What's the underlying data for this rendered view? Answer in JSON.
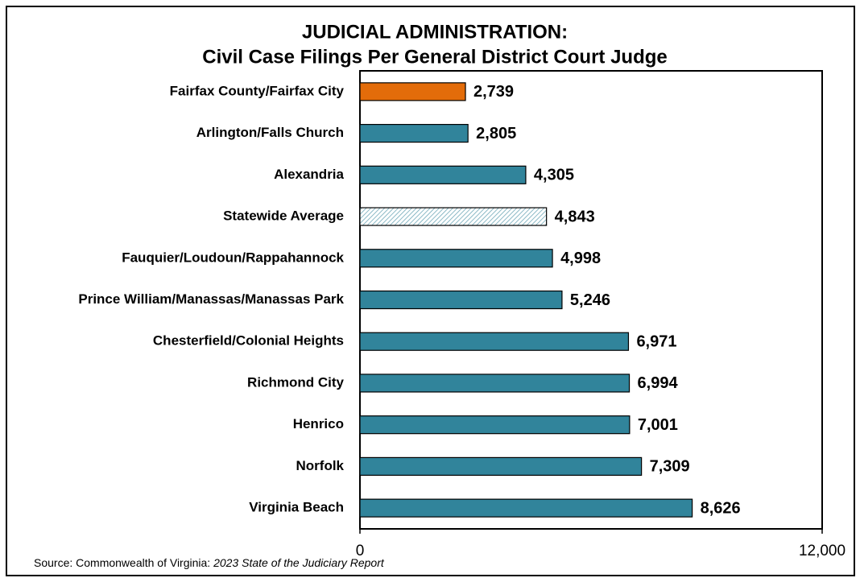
{
  "chart_data": {
    "type": "barh",
    "title": "JUDICIAL ADMINISTRATION:",
    "subtitle": "Civil Case Filings Per General District Court Judge",
    "categories": [
      "Fairfax County/Fairfax City",
      "Arlington/Falls Church",
      "Alexandria",
      "Statewide Average",
      "Fauquier/Loudoun/Rappahannock",
      "Prince William/Manassas/Manassas Park",
      "Chesterfield/Colonial Heights",
      "Richmond City",
      "Henrico",
      "Norfolk",
      "Virginia Beach"
    ],
    "values": [
      2739,
      2805,
      4305,
      4843,
      4998,
      5246,
      6971,
      6994,
      7001,
      7309,
      8626
    ],
    "value_labels": [
      "2,739",
      "2,805",
      "4,305",
      "4,843",
      "4,998",
      "5,246",
      "6,971",
      "6,994",
      "7,001",
      "7,309",
      "8,626"
    ],
    "colors": [
      "#e36c0a",
      "#31849b",
      "#31849b",
      "#6fa8b8",
      "#31849b",
      "#31849b",
      "#31849b",
      "#31849b",
      "#31849b",
      "#31849b",
      "#31849b"
    ],
    "patterns": [
      "solid",
      "solid",
      "solid",
      "hatch",
      "solid",
      "solid",
      "solid",
      "solid",
      "solid",
      "solid",
      "solid"
    ],
    "xlim": [
      0,
      12000
    ],
    "xticks": [
      0,
      {
        "value": 12000,
        "label": "12,000"
      }
    ],
    "source": "Source: Commonwealth of Virginia:",
    "source_report": "2023 State of the Judiciary Report"
  }
}
